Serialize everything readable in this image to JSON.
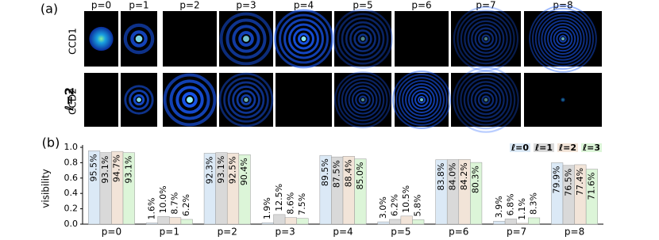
{
  "panel_labels": [
    "(a)",
    "(b)"
  ],
  "panel_a": {
    "columns": [
      "p=0",
      "p=1",
      "p=2",
      "p=3",
      "p=4",
      "p=5",
      "p=6",
      "p=7",
      "p=8"
    ],
    "rows": [
      "CCD1",
      "CCD2"
    ],
    "side_label": "ℓ=2"
  },
  "chart_data": {
    "type": "bar",
    "y_label": "visibility",
    "categories": [
      "p=0",
      "p=1",
      "p=2",
      "p=3",
      "p=4",
      "p=5",
      "p=6",
      "p=7",
      "p=8"
    ],
    "series": [
      {
        "name": "ℓ=0",
        "color": "#dbe9f6",
        "values": [
          0.955,
          0.016,
          0.923,
          0.019,
          0.895,
          0.03,
          0.838,
          0.039,
          0.799
        ],
        "value_labels": [
          "95.5%",
          "1.6%",
          "92.3%",
          "1.9%",
          "89.5%",
          "3.0%",
          "83.8%",
          "3.9%",
          "79.9%"
        ]
      },
      {
        "name": "ℓ=1",
        "color": "#d9d9d9",
        "values": [
          0.931,
          0.1,
          0.931,
          0.125,
          0.875,
          0.062,
          0.84,
          0.068,
          0.765
        ],
        "value_labels": [
          "93.1%",
          "10.0%",
          "93.1%",
          "12.5%",
          "87.5%",
          "6.2%",
          "84.0%",
          "6.8%",
          "76.5%"
        ]
      },
      {
        "name": "ℓ=2",
        "color": "#f2e4d8",
        "values": [
          0.947,
          0.087,
          0.925,
          0.086,
          0.884,
          0.105,
          0.842,
          0.011,
          0.774
        ],
        "value_labels": [
          "94.7%",
          "8.7%",
          "92.5%",
          "8.6%",
          "88.4%",
          "10.5%",
          "84.2%",
          "1.1%",
          "77.4%"
        ]
      },
      {
        "name": "ℓ=3",
        "color": "#dcf5d8",
        "values": [
          0.931,
          0.062,
          0.904,
          0.075,
          0.85,
          0.058,
          0.803,
          0.083,
          0.716
        ],
        "value_labels": [
          "93.1%",
          "6.2%",
          "90.4%",
          "7.5%",
          "85.0%",
          "5.8%",
          "80.3%",
          "8.3%",
          "71.6%"
        ]
      }
    ],
    "ylim": [
      0,
      1
    ],
    "yticks": [
      {
        "value": 0,
        "label": "0.0"
      },
      0.2,
      0.4,
      0.6,
      0.8,
      {
        "value": 1,
        "label": "1.0"
      }
    ],
    "legend": "top-right"
  }
}
